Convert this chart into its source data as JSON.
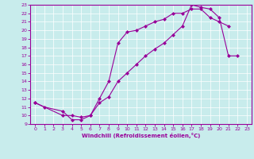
{
  "xlabel": "Windchill (Refroidissement éolien,°C)",
  "bg_color": "#c8ecec",
  "line_color": "#990099",
  "grid_color": "#ffffff",
  "xlim": [
    -0.5,
    23.5
  ],
  "ylim": [
    9,
    23
  ],
  "xticks": [
    0,
    1,
    2,
    3,
    4,
    5,
    6,
    7,
    8,
    9,
    10,
    11,
    12,
    13,
    14,
    15,
    16,
    17,
    18,
    19,
    20,
    21,
    22,
    23
  ],
  "yticks": [
    9,
    10,
    11,
    12,
    13,
    14,
    15,
    16,
    17,
    18,
    19,
    20,
    21,
    22,
    23
  ],
  "line1_x": [
    0,
    1,
    3,
    4,
    5,
    6,
    7,
    8,
    9,
    10,
    11,
    12,
    13,
    14,
    15,
    16,
    17,
    18,
    19,
    20,
    21
  ],
  "line1_y": [
    11.5,
    11,
    10.5,
    9.5,
    9.5,
    10.0,
    12.0,
    14.0,
    18.5,
    19.8,
    20.0,
    20.5,
    21.0,
    21.3,
    22.0,
    22.0,
    22.5,
    22.5,
    21.5,
    21.0,
    20.5
  ],
  "line2_x": [
    0,
    3,
    4,
    5,
    6,
    7,
    8,
    9,
    10,
    11,
    12,
    13,
    14,
    15,
    16,
    17,
    18,
    19,
    20,
    21,
    22
  ],
  "line2_y": [
    11.5,
    10.0,
    10.0,
    9.8,
    10.0,
    11.5,
    12.2,
    14.0,
    15.0,
    16.0,
    17.0,
    17.8,
    18.5,
    19.5,
    20.5,
    23.0,
    22.7,
    22.5,
    21.5,
    17.0,
    17.0
  ]
}
